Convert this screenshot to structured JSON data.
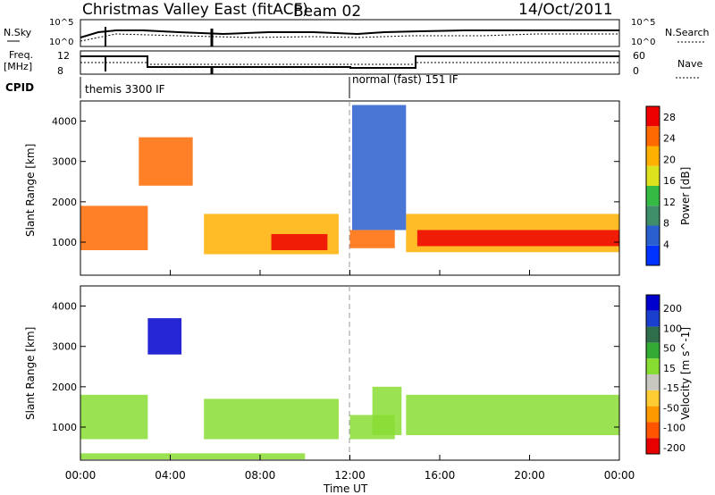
{
  "header": {
    "title": "Christmas Valley East (fitACF)",
    "beam": "Beam 02",
    "date": "14/Oct/2011"
  },
  "panels": {
    "nsky_label": "N.Sky",
    "nsearch_label": "N.Search",
    "freq_label": "Freq.",
    "freq_unit": "[MHz]",
    "nave_label": "Nave",
    "cpid_label": "CPID",
    "n_ticks_left": [
      "10^5",
      "10^0"
    ],
    "n_ticks_right": [
      "10^5",
      "10^0"
    ],
    "freq_ticks": [
      "12",
      "8"
    ],
    "nave_ticks": [
      "60",
      "0"
    ],
    "cpid_segments": [
      {
        "label": "themis 3300 IF",
        "start_h": 0
      },
      {
        "label": "normal (fast) 151 IF",
        "start_h": 12
      }
    ]
  },
  "colors": {
    "power": [
      "#0033ff",
      "#2a5fcf",
      "#3e8e6a",
      "#33bb44",
      "#dde21e",
      "#ffb000",
      "#ff6a00",
      "#ee0000"
    ],
    "velocity": [
      "#e80000",
      "#ff5500",
      "#ff9900",
      "#ffcc33",
      "#c8c8c0",
      "#88dd33",
      "#33aa33",
      "#2f6e4a",
      "#1a3fcc",
      "#0000cc"
    ]
  },
  "chart_data": [
    {
      "type": "heatmap",
      "title": "Power",
      "ylabel": "Slant Range [km]",
      "xlabel": "Time UT",
      "ylim": [
        180,
        4500
      ],
      "xlim": [
        0,
        24
      ],
      "yticks": [
        "1000",
        "2000",
        "3000",
        "4000"
      ],
      "xticks": [
        "00:00",
        "04:00",
        "08:00",
        "12:00",
        "16:00",
        "20:00",
        "00:00"
      ],
      "colorbar": {
        "label": "Power [dB]",
        "ticks": [
          "4",
          "8",
          "12",
          "16",
          "20",
          "24",
          "28"
        ],
        "range": [
          0,
          30
        ]
      },
      "regions": [
        {
          "t0": 0,
          "t1": 3,
          "r0": 800,
          "r1": 1900,
          "value": 24
        },
        {
          "t0": 5.5,
          "t1": 11.5,
          "r0": 700,
          "r1": 1700,
          "value": 20
        },
        {
          "t0": 8.5,
          "t1": 11,
          "r0": 800,
          "r1": 1200,
          "value": 28
        },
        {
          "t0": 12,
          "t1": 14,
          "r0": 850,
          "r1": 1300,
          "value": 24
        },
        {
          "t0": 14.5,
          "t1": 24,
          "r0": 750,
          "r1": 1700,
          "value": 20
        },
        {
          "t0": 15,
          "t1": 24,
          "r0": 900,
          "r1": 1300,
          "value": 28
        },
        {
          "t0": 12.1,
          "t1": 14.5,
          "r0": 1300,
          "r1": 4400,
          "value": 6
        },
        {
          "t0": 2.6,
          "t1": 5,
          "r0": 2400,
          "r1": 3600,
          "value": 24
        }
      ]
    },
    {
      "type": "heatmap",
      "title": "Velocity",
      "ylabel": "Slant Range [km]",
      "xlabel": "Time UT",
      "ylim": [
        180,
        4500
      ],
      "xlim": [
        0,
        24
      ],
      "yticks": [
        "1000",
        "2000",
        "3000",
        "4000"
      ],
      "xticks": [
        "00:00",
        "04:00",
        "08:00",
        "12:00",
        "16:00",
        "20:00",
        "00:00"
      ],
      "colorbar": {
        "label": "Velocity [m s^-1]",
        "ticks": [
          "200",
          "100",
          "50",
          "15",
          "-15",
          "-50",
          "-100",
          "-200"
        ],
        "range": [
          -250,
          250
        ]
      },
      "regions": [
        {
          "t0": 0,
          "t1": 3,
          "r0": 700,
          "r1": 1800,
          "value": 0
        },
        {
          "t0": 5.5,
          "t1": 11.5,
          "r0": 700,
          "r1": 1700,
          "value": 0
        },
        {
          "t0": 12,
          "t1": 14,
          "r0": 700,
          "r1": 1300,
          "value": 20
        },
        {
          "t0": 13,
          "t1": 14.3,
          "r0": 800,
          "r1": 2000,
          "value": 40
        },
        {
          "t0": 14.5,
          "t1": 24,
          "r0": 800,
          "r1": 1800,
          "value": 0
        },
        {
          "t0": 0,
          "t1": 10,
          "r0": 200,
          "r1": 350,
          "value": 40
        },
        {
          "t0": 3,
          "t1": 4.5,
          "r0": 2800,
          "r1": 3700,
          "value": 200
        }
      ]
    }
  ]
}
